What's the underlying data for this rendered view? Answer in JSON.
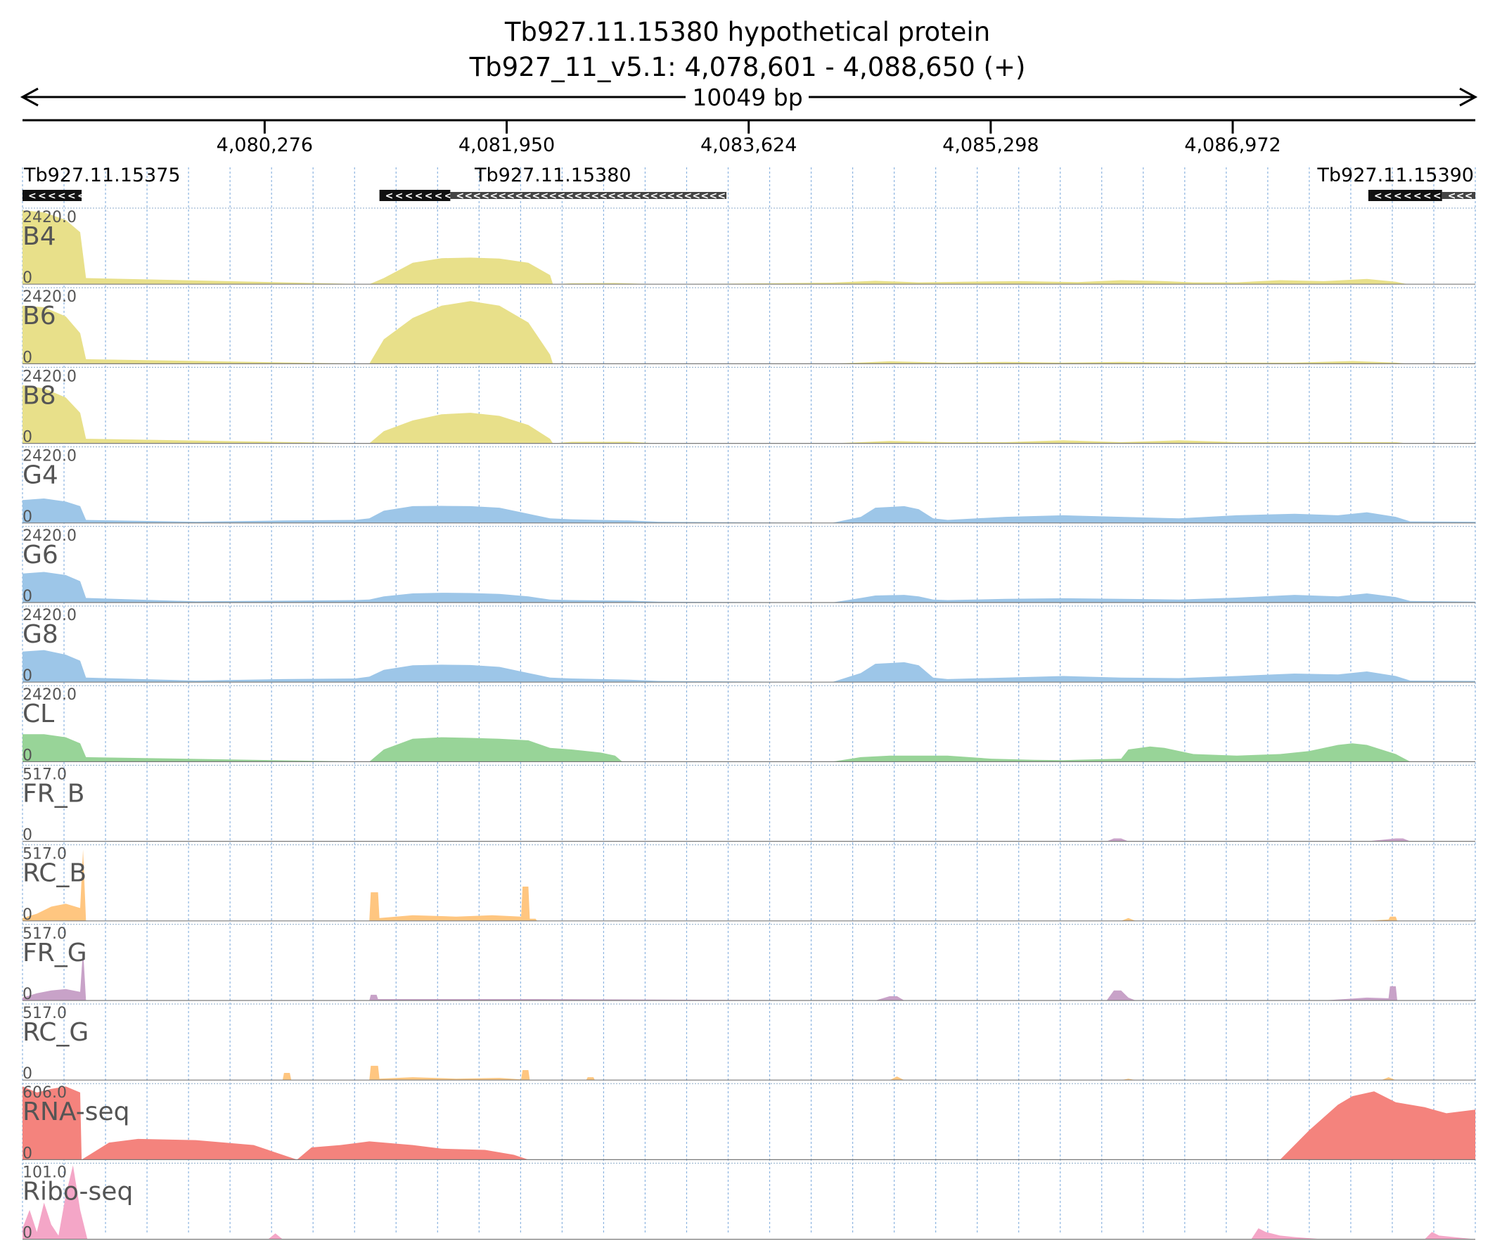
{
  "header": {
    "title_line1": "Tb927.11.15380  hypothetical protein",
    "title_line2": "Tb927_11_v5.1: 4,078,601 - 4,088,650 (+)",
    "span_label": "10049 bp"
  },
  "ruler": {
    "ticks": [
      {
        "position": 4080276,
        "label": "4,080,276"
      },
      {
        "position": 4081950,
        "label": "4,081,950"
      },
      {
        "position": 4083624,
        "label": "4,083,624"
      },
      {
        "position": 4085298,
        "label": "4,085,298"
      },
      {
        "position": 4086972,
        "label": "4,086,972"
      }
    ]
  },
  "genes": [
    {
      "id": "Tb927.11.15375",
      "strand": "-",
      "segments": [
        {
          "start": 4078601,
          "end": 4079010,
          "kind": "cds"
        }
      ]
    },
    {
      "id": "Tb927.11.15380",
      "strand": "-",
      "segments": [
        {
          "start": 4081070,
          "end": 4081560,
          "kind": "cds"
        },
        {
          "start": 4081560,
          "end": 4083470,
          "kind": "utr"
        }
      ]
    },
    {
      "id": "Tb927.11.15390",
      "strand": "-",
      "segments": [
        {
          "start": 4087910,
          "end": 4088420,
          "kind": "cds"
        },
        {
          "start": 4088420,
          "end": 4088650,
          "kind": "utr"
        }
      ]
    }
  ],
  "colors": {
    "B": "#e8e08a",
    "G": "#9dc6e8",
    "CL": "#98d498",
    "FR_B": "#c8a2c8",
    "RC_B": "#ffc680",
    "FR_G": "#c8a2c8",
    "RC_G": "#ffc680",
    "RNA": "#f4837d",
    "Ribo": "#f4a6c7",
    "grid": "#8cb4e0",
    "gene_cds": "#111111",
    "gene_utr": "#444444"
  },
  "chart_data": {
    "type": "area",
    "x_unit": "bp",
    "xlim": [
      4078601,
      4088650
    ],
    "tracks": [
      {
        "name": "B4",
        "color_key": "B",
        "max_label": "2420.0",
        "min_label": "0",
        "ylim": [
          0,
          2420
        ],
        "x": [
          4078601,
          4078750,
          4078900,
          4079000,
          4079040,
          4081000,
          4081100,
          4081300,
          4081500,
          4081700,
          4081900,
          4082100,
          4082250,
          4082270,
          4082400,
          4082700,
          4083000,
          4083100,
          4084200,
          4084500,
          4084800,
          4085100,
          4085500,
          4085900,
          4086200,
          4086500,
          4086700,
          4087000,
          4087300,
          4087600,
          4087900,
          4088100,
          4088180
        ],
        "y": [
          2420,
          2350,
          2100,
          1700,
          200,
          0,
          200,
          700,
          850,
          870,
          840,
          700,
          300,
          0,
          30,
          40,
          0,
          0,
          50,
          110,
          60,
          80,
          100,
          70,
          130,
          100,
          60,
          60,
          130,
          100,
          170,
          80,
          0
        ]
      },
      {
        "name": "B6",
        "color_key": "B",
        "max_label": "2420.0",
        "min_label": "0",
        "ylim": [
          0,
          2420
        ],
        "x": [
          4078601,
          4078750,
          4078900,
          4079000,
          4079040,
          4081000,
          4081100,
          4081300,
          4081500,
          4081700,
          4081900,
          4082100,
          4082250,
          4082270,
          4084200,
          4084600,
          4085000,
          4085400,
          4085800,
          4086200,
          4086600,
          4087000,
          4087400,
          4087800,
          4088100,
          4088180
        ],
        "y": [
          1900,
          1850,
          1550,
          1000,
          150,
          0,
          800,
          1500,
          1900,
          2050,
          1900,
          1350,
          300,
          0,
          0,
          80,
          40,
          60,
          40,
          60,
          40,
          40,
          40,
          90,
          40,
          0
        ]
      },
      {
        "name": "B8",
        "color_key": "B",
        "max_label": "2420.0",
        "min_label": "0",
        "ylim": [
          0,
          2420
        ],
        "x": [
          4078601,
          4078750,
          4078900,
          4079000,
          4079040,
          4081000,
          4081100,
          4081300,
          4081500,
          4081700,
          4081900,
          4082100,
          4082250,
          4082270,
          4082400,
          4082800,
          4083000,
          4084200,
          4084600,
          4085000,
          4085400,
          4085800,
          4086200,
          4086600,
          4087000,
          4088100,
          4088180
        ],
        "y": [
          1900,
          1800,
          1500,
          1000,
          150,
          0,
          400,
          750,
          950,
          1000,
          900,
          600,
          150,
          0,
          50,
          50,
          0,
          0,
          80,
          40,
          40,
          100,
          40,
          100,
          40,
          40,
          0
        ]
      },
      {
        "name": "G4",
        "color_key": "G",
        "max_label": "2420.0",
        "min_label": "0",
        "ylim": [
          0,
          2420
        ],
        "x": [
          4078601,
          4078750,
          4078900,
          4079000,
          4079040,
          4079800,
          4080400,
          4080900,
          4081000,
          4081100,
          4081300,
          4081500,
          4081700,
          4081900,
          4082100,
          4082250,
          4082400,
          4082800,
          4083000,
          4084200,
          4084400,
          4084500,
          4084700,
          4084800,
          4084900,
          4085000,
          4085400,
          4085800,
          4086200,
          4086600,
          4087000,
          4087400,
          4087700,
          4087900,
          4088100,
          4088200,
          4088650
        ],
        "y": [
          750,
          800,
          700,
          550,
          100,
          40,
          80,
          100,
          150,
          400,
          550,
          560,
          550,
          500,
          300,
          150,
          120,
          80,
          40,
          0,
          200,
          500,
          550,
          450,
          150,
          100,
          200,
          250,
          200,
          150,
          250,
          300,
          250,
          350,
          200,
          50,
          40
        ]
      },
      {
        "name": "G6",
        "color_key": "G",
        "max_label": "2420.0",
        "min_label": "0",
        "ylim": [
          0,
          2420
        ],
        "x": [
          4078601,
          4078750,
          4078900,
          4079000,
          4079040,
          4079800,
          4080400,
          4080900,
          4081000,
          4081100,
          4081300,
          4081500,
          4081700,
          4081900,
          4082100,
          4082250,
          4082400,
          4082800,
          4083000,
          4084200,
          4084400,
          4084500,
          4084700,
          4084800,
          4084900,
          4085000,
          4085400,
          4085800,
          4086200,
          4086600,
          4087000,
          4087400,
          4087700,
          4087900,
          4088100,
          4088200,
          4088650
        ],
        "y": [
          950,
          1000,
          900,
          700,
          150,
          40,
          60,
          80,
          100,
          200,
          300,
          320,
          310,
          280,
          200,
          100,
          80,
          60,
          30,
          0,
          150,
          230,
          250,
          200,
          100,
          80,
          120,
          140,
          120,
          100,
          160,
          250,
          200,
          300,
          180,
          50,
          30
        ]
      },
      {
        "name": "G8",
        "color_key": "G",
        "max_label": "2420.0",
        "min_label": "0",
        "ylim": [
          0,
          2420
        ],
        "x": [
          4078601,
          4078750,
          4078900,
          4079000,
          4079040,
          4079800,
          4080400,
          4080900,
          4081000,
          4081100,
          4081300,
          4081500,
          4081700,
          4081900,
          4082100,
          4082250,
          4082400,
          4082800,
          4083000,
          4084200,
          4084400,
          4084500,
          4084700,
          4084800,
          4084900,
          4085000,
          4085400,
          4085800,
          4086200,
          4086600,
          4087000,
          4087400,
          4087700,
          4087900,
          4088100,
          4088200,
          4088650
        ],
        "y": [
          1000,
          1050,
          900,
          700,
          150,
          50,
          100,
          120,
          180,
          400,
          550,
          570,
          560,
          500,
          300,
          150,
          120,
          80,
          40,
          0,
          300,
          600,
          650,
          550,
          150,
          100,
          150,
          200,
          150,
          130,
          200,
          280,
          250,
          350,
          200,
          50,
          40
        ]
      },
      {
        "name": "CL",
        "color_key": "CL",
        "max_label": "2420.0",
        "min_label": "0",
        "ylim": [
          0,
          2420
        ],
        "x": [
          4078601,
          4078750,
          4078900,
          4079000,
          4079040,
          4081000,
          4081100,
          4081300,
          4081500,
          4081700,
          4081900,
          4082100,
          4082250,
          4082400,
          4082600,
          4082700,
          4082750,
          4084200,
          4084400,
          4084600,
          4084800,
          4085000,
          4085300,
          4085600,
          4085800,
          4086200,
          4086250,
          4086400,
          4086500,
          4086700,
          4087000,
          4087300,
          4087500,
          4087700,
          4087800,
          4087900,
          4088100,
          4088200
        ],
        "y": [
          900,
          900,
          800,
          600,
          150,
          0,
          400,
          750,
          800,
          780,
          750,
          700,
          450,
          400,
          300,
          200,
          0,
          0,
          150,
          200,
          200,
          200,
          100,
          60,
          50,
          100,
          400,
          500,
          450,
          250,
          200,
          250,
          350,
          550,
          600,
          550,
          250,
          0
        ]
      },
      {
        "name": "FR_B",
        "color_key": "FR_B",
        "max_label": "517.0",
        "min_label": "0",
        "ylim": [
          0,
          517
        ],
        "x": [
          4078601,
          4086100,
          4086150,
          4086200,
          4086250,
          4087900,
          4088100,
          4088150,
          4088200
        ],
        "y": [
          0,
          0,
          20,
          20,
          0,
          0,
          20,
          20,
          0
        ]
      },
      {
        "name": "RC_B",
        "color_key": "RC_B",
        "max_label": "517.0",
        "min_label": "0",
        "ylim": [
          0,
          517
        ],
        "x": [
          4078601,
          4078700,
          4078800,
          4078900,
          4079000,
          4079020,
          4079040,
          4081000,
          4081010,
          4081060,
          4081070,
          4081300,
          4081600,
          4081850,
          4082050,
          4082060,
          4082100,
          4082110,
          4082150,
          4082160,
          4086200,
          4086250,
          4086300,
          4087900,
          4088050,
          4088060,
          4088100,
          4088110
        ],
        "y": [
          20,
          50,
          100,
          120,
          90,
          500,
          0,
          0,
          200,
          200,
          20,
          40,
          30,
          40,
          30,
          240,
          240,
          15,
          15,
          0,
          0,
          20,
          0,
          0,
          10,
          30,
          30,
          0
        ]
      },
      {
        "name": "FR_G",
        "color_key": "FR_G",
        "max_label": "517.0",
        "min_label": "0",
        "ylim": [
          0,
          517
        ],
        "x": [
          4078601,
          4078700,
          4078800,
          4078900,
          4079000,
          4079020,
          4079040,
          4081000,
          4081010,
          4081050,
          4081060,
          4081500,
          4082100,
          4084500,
          4084600,
          4084650,
          4084700,
          4086100,
          4086150,
          4086200,
          4086250,
          4086300,
          4087600,
          4087900,
          4088050,
          4088060,
          4088100,
          4088110
        ],
        "y": [
          20,
          50,
          70,
          80,
          60,
          360,
          0,
          0,
          40,
          40,
          10,
          10,
          10,
          0,
          30,
          30,
          0,
          0,
          70,
          70,
          20,
          0,
          0,
          20,
          15,
          100,
          100,
          0
        ]
      },
      {
        "name": "RC_G",
        "color_key": "RC_G",
        "max_label": "517.0",
        "min_label": "0",
        "ylim": [
          0,
          517
        ],
        "x": [
          4078601,
          4080400,
          4080410,
          4080450,
          4080460,
          4081000,
          4081010,
          4081060,
          4081070,
          4081300,
          4081600,
          4081900,
          4082050,
          4082060,
          4082100,
          4082110,
          4082500,
          4082510,
          4082550,
          4082560,
          4084600,
          4084650,
          4084700,
          4086200,
          4086250,
          4086300,
          4088000,
          4088050,
          4088100
        ],
        "y": [
          0,
          0,
          50,
          50,
          0,
          0,
          100,
          100,
          10,
          20,
          10,
          15,
          5,
          70,
          70,
          0,
          0,
          20,
          20,
          0,
          0,
          25,
          0,
          0,
          10,
          0,
          0,
          20,
          0
        ]
      },
      {
        "name": "RNA-seq",
        "color_key": "RNA",
        "max_label": "606.0",
        "min_label": "0",
        "ylim": [
          0,
          606
        ],
        "x": [
          4078601,
          4078700,
          4078800,
          4078900,
          4079000,
          4079010,
          4079200,
          4079400,
          4079800,
          4080200,
          4080500,
          4080600,
          4080800,
          4081000,
          4081300,
          4081500,
          4081800,
          4082000,
          4082100,
          4082300,
          4084200,
          4087300,
          4087500,
          4087700,
          4087800,
          4087950,
          4088100,
          4088300,
          4088450,
          4088650
        ],
        "y": [
          600,
          550,
          580,
          600,
          550,
          0,
          140,
          170,
          160,
          120,
          0,
          100,
          120,
          150,
          120,
          90,
          80,
          40,
          0,
          0,
          0,
          0,
          240,
          450,
          520,
          560,
          470,
          430,
          380,
          410
        ]
      },
      {
        "name": "Ribo-seq",
        "color_key": "Ribo",
        "max_label": "101.0",
        "min_label": "0",
        "ylim": [
          0,
          101
        ],
        "x": [
          4078601,
          4078650,
          4078700,
          4078750,
          4078800,
          4078850,
          4078900,
          4078950,
          4079000,
          4079050,
          4080300,
          4080350,
          4080400,
          4087100,
          4087150,
          4087200,
          4087300,
          4087400,
          4087600,
          4088300,
          4088350,
          4088400,
          4088650
        ],
        "y": [
          15,
          40,
          10,
          50,
          20,
          5,
          60,
          101,
          40,
          0,
          0,
          8,
          0,
          0,
          15,
          10,
          5,
          3,
          0,
          0,
          10,
          5,
          0
        ]
      }
    ]
  }
}
